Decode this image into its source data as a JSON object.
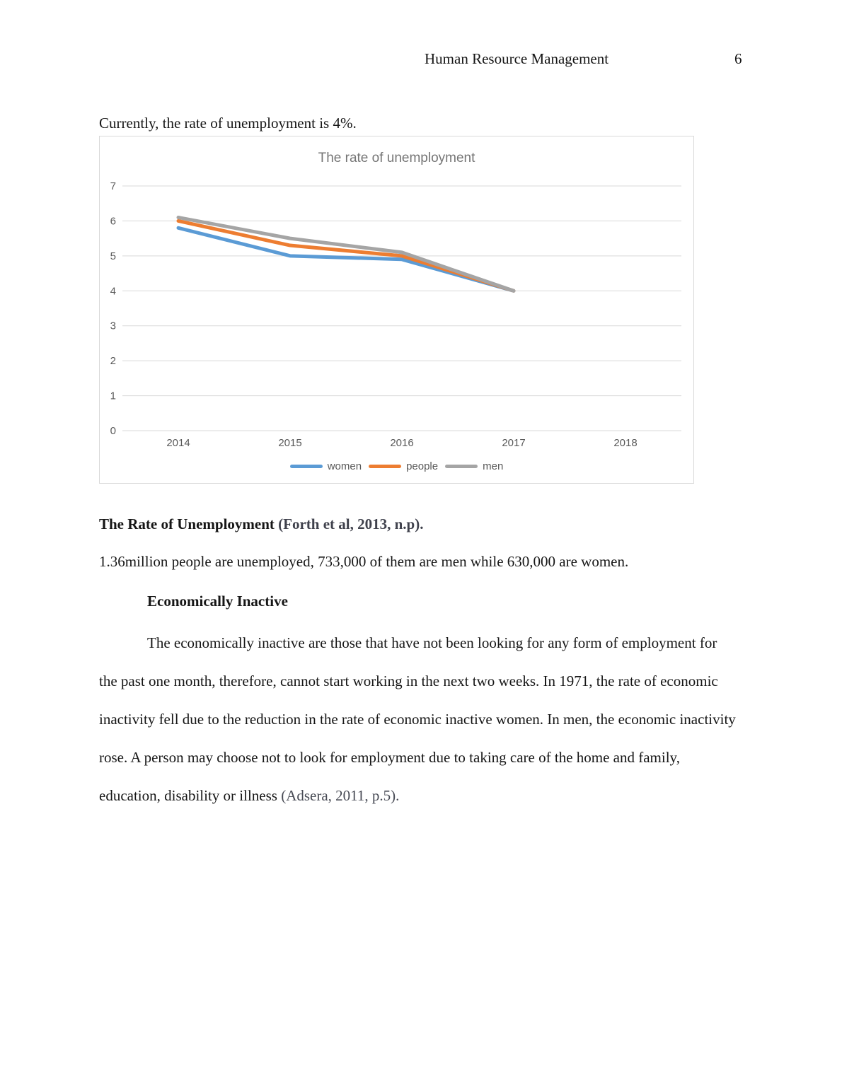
{
  "header": {
    "title": "Human Resource Management",
    "page_number": "6"
  },
  "intro_text": "Currently, the rate of unemployment is 4%.",
  "chart_data": {
    "type": "line",
    "title": "The rate of unemployment",
    "categories": [
      "2014",
      "2015",
      "2016",
      "2017",
      "2018"
    ],
    "series": [
      {
        "name": "women",
        "color": "#5B9BD5",
        "values": [
          5.8,
          5.0,
          4.9,
          4.0
        ]
      },
      {
        "name": "people",
        "color": "#ED7D31",
        "values": [
          6.0,
          5.3,
          5.0,
          4.0
        ]
      },
      {
        "name": "men",
        "color": "#A5A5A5",
        "values": [
          6.1,
          5.5,
          5.1,
          4.0
        ]
      }
    ],
    "xlabel": "",
    "ylabel": "",
    "ylim": [
      0,
      7
    ],
    "yticks": [
      0,
      1,
      2,
      3,
      4,
      5,
      6,
      7
    ],
    "grid": true,
    "legend_position": "bottom",
    "gridline_color": "#D9D9D9",
    "axis_text_color": "#595959",
    "note": "no data plotted for 2018"
  },
  "caption": {
    "text": "The Rate of Unemployment ",
    "citation": "(Forth et al, 2013, n.p)."
  },
  "stats_text": "1.36million people are unemployed, 733,000 of them are men while 630,000 are women.",
  "section": {
    "heading": "Economically Inactive",
    "body": "The economically inactive are those that have not been looking for any form of employment for the past one month, therefore, cannot start working in the next two weeks. In 1971, the rate of economic inactivity fell due to the reduction in the rate of economic inactive women. In men, the economic inactivity rose. A person may choose not to look for employment due to taking care of the home and family, education, disability or illness ",
    "citation": "(Adsera, 2011, p.5)."
  }
}
